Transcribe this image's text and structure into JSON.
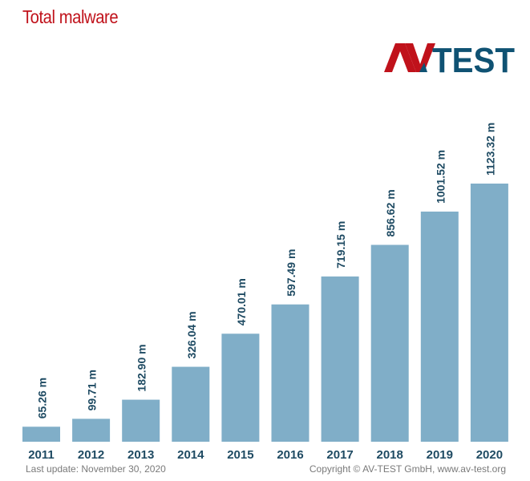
{
  "header": {
    "title": "Total malware",
    "logo_text": "AV-TEST"
  },
  "footer": {
    "last_update": "Last update: November 30, 2020",
    "copyright": "Copyright © AV-TEST GmbH, www.av-test.org"
  },
  "colors": {
    "bar": "#80aec8",
    "label": "#1f4b63",
    "title": "#c0121b",
    "logo_red": "#c0121b",
    "logo_blue": "#0f5273"
  },
  "chart_data": {
    "type": "bar",
    "title": "Total malware",
    "xlabel": "",
    "ylabel": "",
    "categories": [
      "2011",
      "2012",
      "2013",
      "2014",
      "2015",
      "2016",
      "2017",
      "2018",
      "2019",
      "2020"
    ],
    "values": [
      65.26,
      99.71,
      182.9,
      326.04,
      470.01,
      597.49,
      719.15,
      856.62,
      1001.52,
      1123.32
    ],
    "data_labels": [
      "65.26 m",
      "99.71 m",
      "182.90 m",
      "326.04 m",
      "470.01 m",
      "597.49 m",
      "719.15 m",
      "856.62 m",
      "1001.52 m",
      "1123.32 m"
    ],
    "unit": "m",
    "ylim": [
      0,
      1123.32
    ],
    "grid": false
  }
}
